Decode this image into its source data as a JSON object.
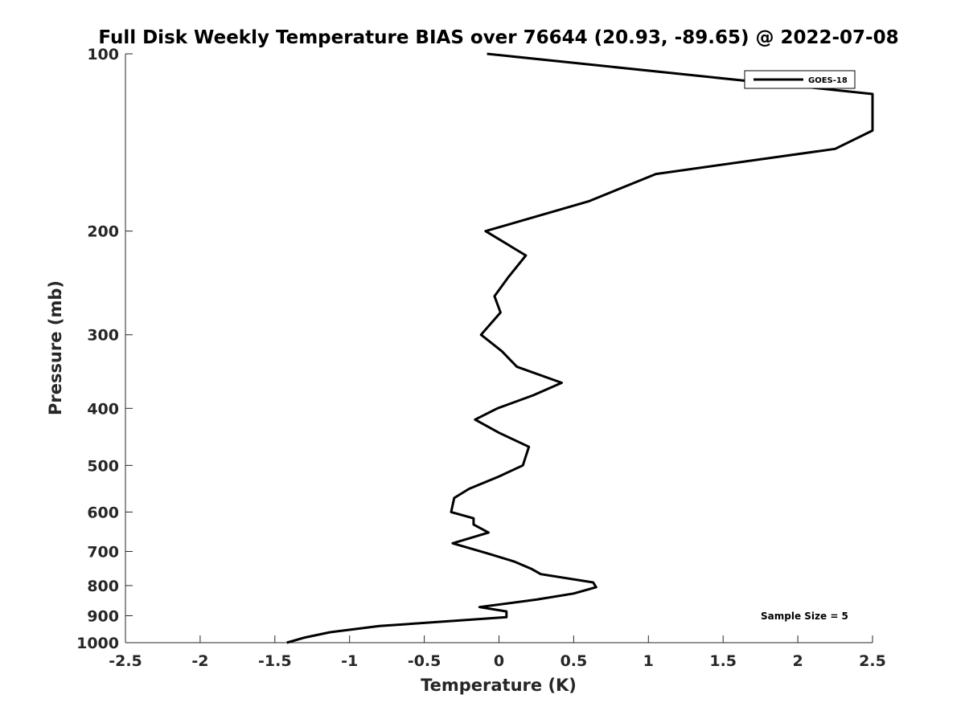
{
  "chart_data": {
    "type": "line",
    "title": "Full Disk Weekly Temperature BIAS over 76644 (20.93, -89.65) @ 2022-07-08",
    "xlabel": "Temperature (K)",
    "ylabel": "Pressure (mb)",
    "xlim": [
      -2.5,
      2.5
    ],
    "ylim": [
      1000,
      100
    ],
    "y_scale": "log",
    "x_ticks": [
      "-2.5",
      "-2",
      "-1.5",
      "-1",
      "-0.5",
      "0",
      "0.5",
      "1",
      "1.5",
      "2",
      "2.5"
    ],
    "y_ticks": [
      "100",
      "200",
      "300",
      "400",
      "500",
      "600",
      "700",
      "800",
      "900",
      "1000"
    ],
    "grid": false,
    "legend": {
      "position": "top-right",
      "entries": [
        "GOES-18"
      ]
    },
    "annotation": "Sample Size = 5",
    "series": [
      {
        "name": "GOES-18",
        "color": "#000000",
        "points": [
          {
            "x": -0.08,
            "y": 100
          },
          {
            "x": 2.5,
            "y": 117
          },
          {
            "x": 2.5,
            "y": 135
          },
          {
            "x": 2.25,
            "y": 145
          },
          {
            "x": 1.05,
            "y": 160
          },
          {
            "x": 0.6,
            "y": 178
          },
          {
            "x": -0.09,
            "y": 200
          },
          {
            "x": 0.18,
            "y": 220
          },
          {
            "x": 0.06,
            "y": 240
          },
          {
            "x": -0.03,
            "y": 258
          },
          {
            "x": 0.01,
            "y": 275
          },
          {
            "x": -0.12,
            "y": 300
          },
          {
            "x": 0.02,
            "y": 320
          },
          {
            "x": 0.12,
            "y": 340
          },
          {
            "x": 0.42,
            "y": 362
          },
          {
            "x": 0.23,
            "y": 380
          },
          {
            "x": -0.01,
            "y": 400
          },
          {
            "x": -0.16,
            "y": 418
          },
          {
            "x": 0.0,
            "y": 440
          },
          {
            "x": 0.2,
            "y": 465
          },
          {
            "x": 0.16,
            "y": 500
          },
          {
            "x": 0.0,
            "y": 522
          },
          {
            "x": -0.2,
            "y": 548
          },
          {
            "x": -0.3,
            "y": 568
          },
          {
            "x": -0.32,
            "y": 600
          },
          {
            "x": -0.17,
            "y": 615
          },
          {
            "x": -0.17,
            "y": 630
          },
          {
            "x": -0.07,
            "y": 650
          },
          {
            "x": -0.31,
            "y": 678
          },
          {
            "x": -0.08,
            "y": 705
          },
          {
            "x": 0.1,
            "y": 728
          },
          {
            "x": 0.22,
            "y": 750
          },
          {
            "x": 0.28,
            "y": 765
          },
          {
            "x": 0.63,
            "y": 790
          },
          {
            "x": 0.65,
            "y": 805
          },
          {
            "x": 0.5,
            "y": 825
          },
          {
            "x": 0.25,
            "y": 845
          },
          {
            "x": -0.13,
            "y": 870
          },
          {
            "x": 0.05,
            "y": 885
          },
          {
            "x": 0.05,
            "y": 905
          },
          {
            "x": -0.8,
            "y": 937
          },
          {
            "x": -1.13,
            "y": 960
          },
          {
            "x": -1.3,
            "y": 980
          },
          {
            "x": -1.42,
            "y": 1000
          }
        ]
      }
    ]
  }
}
